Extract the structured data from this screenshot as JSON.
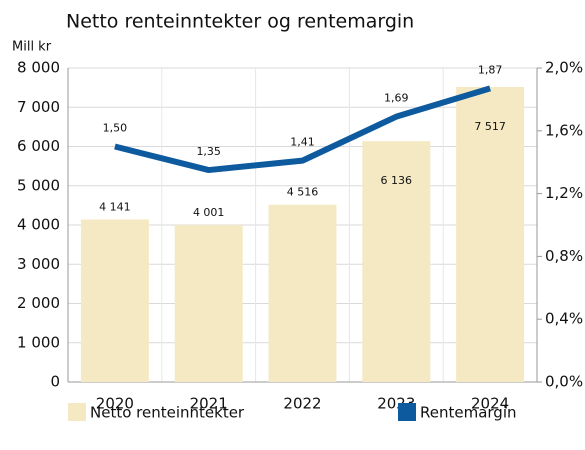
{
  "chart_data": {
    "type": "bar-line",
    "title": "Netto renteinntekter og rentemargin",
    "ylabel": "Mill kr",
    "categories": [
      "2020",
      "2021",
      "2022",
      "2023",
      "2024"
    ],
    "series": [
      {
        "name": "Netto renteinntekter",
        "color": "#f5e9c4",
        "type": "bar",
        "values": [
          4141,
          4001,
          4516,
          6136,
          7517
        ],
        "value_labels": [
          "4 141",
          "4 001",
          "4 516",
          "6 136",
          "7 517"
        ]
      },
      {
        "name": "Rentemargin",
        "color": "#0d5a9e",
        "type": "line",
        "axis": "y2",
        "values": [
          1.5,
          1.35,
          1.41,
          1.69,
          1.87
        ],
        "value_labels": [
          "1,50",
          "1,35",
          "1,41",
          "1,69",
          "1,87"
        ]
      }
    ],
    "ylim": [
      0,
      8000
    ],
    "yticks": [
      0,
      {
        "value": 1000,
        "label": "1 000"
      },
      {
        "value": 2000,
        "label": "2 000"
      },
      {
        "value": 3000,
        "label": "3 000"
      },
      {
        "value": 4000,
        "label": "4 000"
      },
      {
        "value": 5000,
        "label": "5 000"
      },
      {
        "value": 6000,
        "label": "6 000"
      },
      {
        "value": 7000,
        "label": "7 000"
      },
      {
        "value": 8000,
        "label": "8 000"
      }
    ],
    "y2lim": [
      0,
      2
    ],
    "y2ticks": [
      {
        "value": 0,
        "label": "0,0%"
      },
      {
        "value": 0.4,
        "label": "0,4%"
      },
      {
        "value": 0.8,
        "label": "0,8%"
      },
      {
        "value": 1.2,
        "label": "1,2%"
      },
      {
        "value": 1.6,
        "label": "1,6%"
      },
      {
        "value": 2.0,
        "label": "2,0%"
      }
    ],
    "grid": true
  }
}
